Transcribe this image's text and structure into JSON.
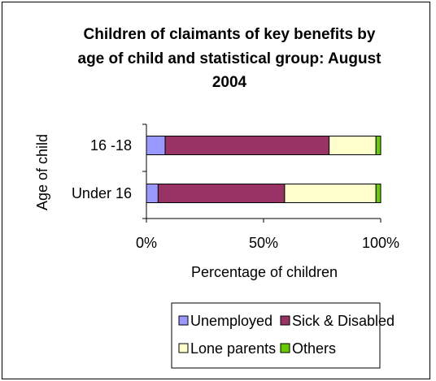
{
  "chart_data": {
    "type": "bar",
    "orientation": "horizontal",
    "stacked": "percent",
    "title_lines": [
      "Children of claimants of key benefits by",
      "age of child and statistical group: August",
      "2004"
    ],
    "xlabel": "Percentage of children",
    "ylabel": "Age of child",
    "xlim": [
      0,
      100
    ],
    "x_ticks": [
      "0%",
      "50%",
      "100%"
    ],
    "categories": [
      "16 -18",
      "Under 16"
    ],
    "series": [
      {
        "name": "Unemployed",
        "color": "#9999ff",
        "values": [
          8,
          5
        ]
      },
      {
        "name": "Sick & Disabled",
        "color": "#993366",
        "values": [
          70,
          54
        ]
      },
      {
        "name": "Lone parents",
        "color": "#ffffcc",
        "values": [
          20,
          39
        ]
      },
      {
        "name": "Others",
        "color": "#66cc00",
        "values": [
          2,
          2
        ]
      }
    ],
    "legend_position": "bottom",
    "grid": false
  }
}
